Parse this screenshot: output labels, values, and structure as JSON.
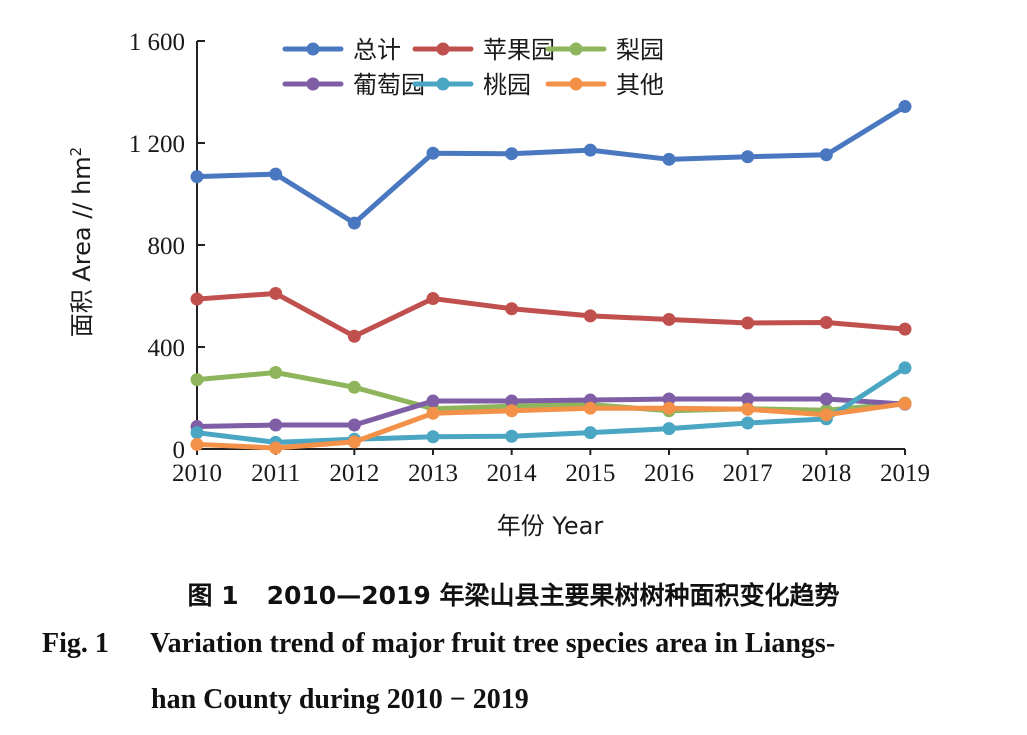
{
  "chart_data": {
    "type": "line",
    "x": [
      "2010",
      "2011",
      "2012",
      "2013",
      "2014",
      "2015",
      "2016",
      "2017",
      "2018",
      "2019"
    ],
    "ylim": [
      0,
      1600
    ],
    "yticks": [
      {
        "value": 0,
        "label": "0"
      },
      {
        "value": 400,
        "label": "400"
      },
      {
        "value": 800,
        "label": "800"
      },
      {
        "value": 1200,
        "label": "1 200"
      },
      {
        "value": 1600,
        "label": "1 600"
      }
    ],
    "xlabel": "年份 Year",
    "ylabel_prefix": "面积 Area // hm",
    "ylabel_sup": "2",
    "grid": false,
    "legend_position": "top",
    "series": [
      {
        "name": "总计",
        "color": "#4a78c0",
        "values": [
          1068,
          1078,
          886,
          1160,
          1158,
          1172,
          1136,
          1146,
          1154,
          1343
        ]
      },
      {
        "name": "苹果园",
        "color": "#c0504d",
        "values": [
          588,
          610,
          442,
          590,
          550,
          522,
          508,
          494,
          496,
          470
        ]
      },
      {
        "name": "梨园",
        "color": "#8fb55c",
        "values": [
          272,
          300,
          242,
          158,
          168,
          174,
          150,
          158,
          152,
          180
        ]
      },
      {
        "name": "葡萄园",
        "color": "#7f5ea5",
        "values": [
          88,
          94,
          94,
          188,
          188,
          192,
          196,
          196,
          196,
          176
        ]
      },
      {
        "name": "桃园",
        "color": "#4aa6c2",
        "values": [
          64,
          26,
          38,
          48,
          50,
          64,
          80,
          102,
          118,
          318
        ]
      },
      {
        "name": "其他",
        "color": "#f39149",
        "values": [
          18,
          4,
          28,
          140,
          150,
          160,
          160,
          156,
          134,
          178
        ]
      }
    ]
  },
  "caption": {
    "cn_number": "图 1",
    "cn_text": "2010—2019 年梁山县主要果树树种面积变化趋势",
    "en_number": "Fig. 1",
    "en_line1": "Variation trend of major fruit tree species area in Liangs-",
    "en_line2": "han County during 2010 − 2019"
  }
}
